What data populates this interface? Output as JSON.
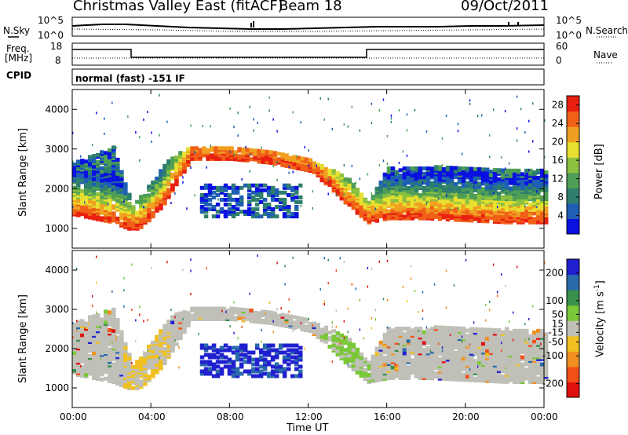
{
  "header": {
    "radar": "Christmas Valley East (fitACF)",
    "beam": "Beam 18",
    "date": "09/Oct/2011"
  },
  "left_labels": {
    "nsky": "N.Sky",
    "freq": "Freq.",
    "freq_unit": "[MHz]",
    "cpid": "CPID"
  },
  "right_labels": {
    "nsearch": "N.Search",
    "nave": "Nave"
  },
  "cpid_text": "normal (fast) -151 IF",
  "noise_axis": {
    "left_ticks": [
      "10^5",
      "10^0"
    ],
    "right_ticks": [
      "10^5",
      "10^0"
    ]
  },
  "freq_axis": {
    "left_ticks": [
      "18",
      "8"
    ],
    "right_ticks": [
      "60",
      "0"
    ]
  },
  "x_axis": {
    "ticks": [
      "00:00",
      "04:00",
      "08:00",
      "12:00",
      "16:00",
      "20:00",
      "00:00"
    ],
    "label": "Time UT"
  },
  "colors": {
    "power_scale": [
      "#0a10e0",
      "#1e5fb4",
      "#2f7f6e",
      "#4e9f55",
      "#8cc040",
      "#e8e030",
      "#f0a020",
      "#f06018",
      "#e82010"
    ],
    "velocity_scale": [
      "#2020d0",
      "#2a6aaa",
      "#38904a",
      "#7ac838",
      "#c0c0b8",
      "#f0c020",
      "#f09020",
      "#f05018",
      "#e01010"
    ]
  },
  "chart_data": [
    {
      "type": "heatmap",
      "title": "",
      "xlabel": "Time UT",
      "ylabel": "Slant Range [km]",
      "xlim_hours": [
        0,
        24
      ],
      "ylim": [
        500,
        4500
      ],
      "yticks": [
        1000,
        2000,
        3000,
        4000
      ],
      "colorbar": {
        "label": "Power [dB]",
        "ticks": [
          4,
          8,
          12,
          16,
          20,
          24,
          28
        ],
        "range": [
          0,
          30
        ]
      },
      "features_hours_km": {
        "f_region_lower_edge": [
          [
            0,
            1300
          ],
          [
            1,
            1200
          ],
          [
            2,
            1100
          ],
          [
            3,
            900
          ],
          [
            3.5,
            1000
          ],
          [
            4.5,
            1500
          ],
          [
            5.5,
            2300
          ],
          [
            6,
            2700
          ],
          [
            8,
            2700
          ],
          [
            10,
            2600
          ],
          [
            12,
            2400
          ],
          [
            13,
            2000
          ],
          [
            14,
            1500
          ],
          [
            15,
            1100
          ],
          [
            16,
            1200
          ],
          [
            18,
            1200
          ],
          [
            20,
            1150
          ],
          [
            22,
            1100
          ],
          [
            24,
            1100
          ]
        ],
        "scatter_top": [
          [
            0,
            2600
          ],
          [
            2,
            3000
          ],
          [
            3,
            1500
          ],
          [
            5,
            2800
          ],
          [
            6,
            3000
          ],
          [
            8,
            3000
          ],
          [
            10,
            2900
          ],
          [
            12,
            2700
          ],
          [
            14,
            2200
          ],
          [
            15,
            1600
          ],
          [
            16,
            2500
          ],
          [
            20,
            2500
          ],
          [
            24,
            2400
          ]
        ]
      }
    },
    {
      "type": "heatmap",
      "title": "",
      "xlabel": "Time UT",
      "ylabel": "Slant Range [km]",
      "xlim_hours": [
        0,
        24
      ],
      "ylim": [
        500,
        4500
      ],
      "yticks": [
        1000,
        2000,
        3000,
        4000
      ],
      "colorbar": {
        "label": "Velocity [m s-1]",
        "ticks": [
          200,
          100,
          50,
          15,
          -15,
          -50,
          -100,
          -200
        ],
        "range": [
          -250,
          250
        ]
      }
    }
  ],
  "ylabel_power": "Slant Range [km]",
  "ylabel_vel": "Slant Range [km]",
  "cbar_power_label": "Power [dB]",
  "cbar_vel_label": "Velocity [m s",
  "cbar_vel_exp": "-1",
  "cbar_vel_close": "]"
}
